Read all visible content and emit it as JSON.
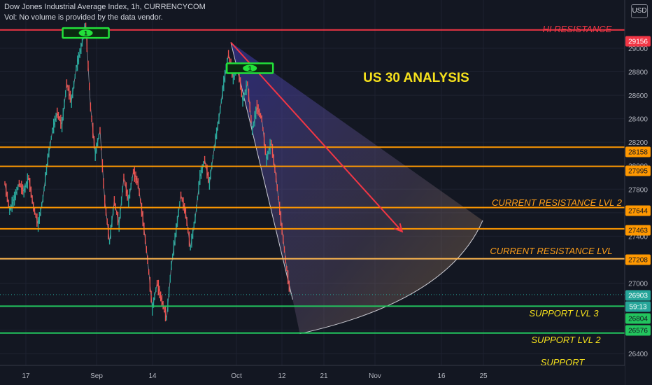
{
  "header": {
    "title": "Dow Jones Industrial Average Index, 1h, CURRENCYCOM",
    "volume_note": "Vol: No volume is provided by the data vendor.",
    "currency": "USD"
  },
  "chart_data": {
    "type": "line",
    "title": "US 30 ANALYSIS",
    "ylim": [
      26300,
      29250
    ],
    "x_ticks": [
      "17",
      "Sep",
      "14",
      "Oct",
      "12",
      "21",
      "Nov",
      "16",
      "25"
    ],
    "y_ticks": [
      26400,
      26600,
      26800,
      27000,
      27200,
      27400,
      27600,
      27800,
      28000,
      28200,
      28400,
      28600,
      28800,
      29000
    ],
    "levels": [
      {
        "price": 29156,
        "label": "HI RESISTANCE",
        "color": "#f23645"
      },
      {
        "price": 28158,
        "label": "",
        "color": "#ff9800"
      },
      {
        "price": 27995,
        "label": "",
        "color": "#ff9800"
      },
      {
        "price": 27644,
        "label": "CURRENT RESISTANCE LVL 2",
        "color": "#ff9800"
      },
      {
        "price": 27463,
        "label": "",
        "color": "#ff9800"
      },
      {
        "price": 27208,
        "label": "CURRENT RESISTANCE LVL",
        "color": "#ffb74d"
      },
      {
        "price": 26804,
        "label": "SUPPORT LVL 3",
        "color": "#22c55e"
      },
      {
        "price": 26576,
        "label": "SUPPORT LVL 2",
        "color": "#22c55e"
      }
    ],
    "extra_labels": [
      "SUPPORT"
    ],
    "price_tags": [
      {
        "text": "29156",
        "bg": "#f23645",
        "fg": "#ffffff"
      },
      {
        "text": "28158",
        "bg": "#ff9800",
        "fg": "#131722"
      },
      {
        "text": "27995",
        "bg": "#ff9800",
        "fg": "#131722"
      },
      {
        "text": "27644",
        "bg": "#ff9800",
        "fg": "#131722"
      },
      {
        "text": "27463",
        "bg": "#ff9800",
        "fg": "#131722"
      },
      {
        "text": "27208",
        "bg": "#ff9800",
        "fg": "#131722"
      },
      {
        "text": "26903",
        "bg": "#26a69a",
        "fg": "#ffffff"
      },
      {
        "text": "59:13",
        "bg": "#26a69a",
        "fg": "#ffffff"
      },
      {
        "text": "26804",
        "bg": "#22c55e",
        "fg": "#131722"
      },
      {
        "text": "26576",
        "bg": "#22c55e",
        "fg": "#131722"
      }
    ],
    "last_price": 26903,
    "price_path": [
      {
        "t": 0,
        "p": 27850
      },
      {
        "t": 1,
        "p": 27620
      },
      {
        "t": 2,
        "p": 27720
      },
      {
        "t": 3,
        "p": 27850
      },
      {
        "t": 4,
        "p": 27780
      },
      {
        "t": 5,
        "p": 27900
      },
      {
        "t": 6,
        "p": 27650
      },
      {
        "t": 7,
        "p": 27500
      },
      {
        "t": 8,
        "p": 27720
      },
      {
        "t": 9,
        "p": 28050
      },
      {
        "t": 10,
        "p": 28300
      },
      {
        "t": 11,
        "p": 28450
      },
      {
        "t": 12,
        "p": 28350
      },
      {
        "t": 13,
        "p": 28700
      },
      {
        "t": 14,
        "p": 28550
      },
      {
        "t": 15,
        "p": 28830
      },
      {
        "t": 16,
        "p": 29000
      },
      {
        "t": 17,
        "p": 29200
      },
      {
        "t": 18,
        "p": 28500
      },
      {
        "t": 19,
        "p": 28100
      },
      {
        "t": 20,
        "p": 28300
      },
      {
        "t": 21,
        "p": 27700
      },
      {
        "t": 22,
        "p": 27350
      },
      {
        "t": 23,
        "p": 27700
      },
      {
        "t": 24,
        "p": 27500
      },
      {
        "t": 25,
        "p": 27900
      },
      {
        "t": 26,
        "p": 27700
      },
      {
        "t": 27,
        "p": 27950
      },
      {
        "t": 28,
        "p": 27850
      },
      {
        "t": 29,
        "p": 27550
      },
      {
        "t": 30,
        "p": 27200
      },
      {
        "t": 31,
        "p": 26780
      },
      {
        "t": 32,
        "p": 27000
      },
      {
        "t": 33,
        "p": 26850
      },
      {
        "t": 34,
        "p": 26700
      },
      {
        "t": 35,
        "p": 27150
      },
      {
        "t": 36,
        "p": 27450
      },
      {
        "t": 37,
        "p": 27750
      },
      {
        "t": 38,
        "p": 27600
      },
      {
        "t": 39,
        "p": 27300
      },
      {
        "t": 40,
        "p": 27550
      },
      {
        "t": 41,
        "p": 27900
      },
      {
        "t": 42,
        "p": 28050
      },
      {
        "t": 43,
        "p": 27850
      },
      {
        "t": 44,
        "p": 28150
      },
      {
        "t": 45,
        "p": 28400
      },
      {
        "t": 46,
        "p": 28700
      },
      {
        "t": 47,
        "p": 28950
      },
      {
        "t": 48,
        "p": 28750
      },
      {
        "t": 49,
        "p": 28850
      },
      {
        "t": 50,
        "p": 28550
      },
      {
        "t": 51,
        "p": 28700
      },
      {
        "t": 52,
        "p": 28300
      },
      {
        "t": 53,
        "p": 28500
      },
      {
        "t": 54,
        "p": 28400
      },
      {
        "t": 55,
        "p": 28050
      },
      {
        "t": 56,
        "p": 28200
      },
      {
        "t": 57,
        "p": 27900
      },
      {
        "t": 58,
        "p": 27550
      },
      {
        "t": 59,
        "p": 27200
      },
      {
        "t": 60,
        "p": 26900
      }
    ],
    "annotations": [
      {
        "type": "trendline",
        "from": {
          "t": 47.5,
          "p": 29050
        },
        "to": {
          "t": 83.5,
          "p": 27440
        },
        "color": "#f23645"
      },
      {
        "type": "fib_fan",
        "apex": {
          "t": 47.5,
          "p": 29050
        },
        "edge_point": {
          "t": 60.5,
          "p": 26860
        },
        "end_point": {
          "t": 62,
          "p": 26570
        }
      }
    ],
    "markers": [
      {
        "label": "1",
        "t": 17,
        "p": 29130
      },
      {
        "label": "1",
        "t": 51.5,
        "p": 28830
      }
    ]
  }
}
